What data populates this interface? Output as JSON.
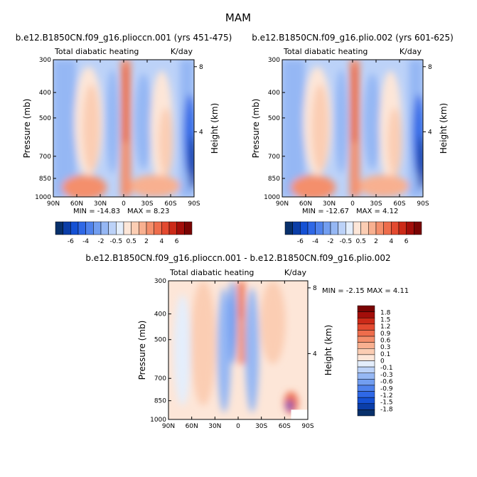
{
  "figure_title": "MAM",
  "palette": {
    "full": [
      "#08306b",
      "#0b3ea8",
      "#1551d4",
      "#2f68e6",
      "#4f82ec",
      "#729ef0",
      "#95b7f4",
      "#bcd2f8",
      "#e4eefc",
      "#fde6d8",
      "#fbcdb3",
      "#f8b090",
      "#f48f6c",
      "#ee6d4c",
      "#e34a30",
      "#cc2a18",
      "#a30e0a",
      "#7a0403"
    ],
    "diff": [
      "#08306b",
      "#0b3ea8",
      "#1551d4",
      "#2f68e6",
      "#4f82ec",
      "#729ef0",
      "#95b7f4",
      "#bcd2f8",
      "#e4eefc",
      "#fde6d8",
      "#fbcdb3",
      "#f8b090",
      "#f48f6c",
      "#ee6d4c",
      "#e34a30",
      "#cc2a18",
      "#a30e0a",
      "#7a0403"
    ]
  },
  "chart_data": [
    {
      "type": "heatmap",
      "title": "b.e12.B1850CN.f09_g16.plioccn.001 (yrs 451-475)",
      "subtitle_left": "Total diabatic heating",
      "subtitle_right": "K/day",
      "ylabel": "Pressure (mb)",
      "ylabel_right": "Height (km)",
      "x_ticks": [
        "90N",
        "60N",
        "30N",
        "0",
        "30S",
        "60S",
        "90S"
      ],
      "y_ticks": [
        "300",
        "400",
        "500",
        "700",
        "850",
        "1000"
      ],
      "y_ticks_right": [
        "8",
        "4"
      ],
      "min_label": "MIN = -14.83",
      "max_label": "MAX =   8.23",
      "colorbar_labels": [
        "-6",
        "-4",
        "-2",
        "-0.5",
        "0.5",
        "2",
        "4",
        "6"
      ]
    },
    {
      "type": "heatmap",
      "title": "b.e12.B1850CN.f09_g16.plio.002 (yrs 601-625)",
      "subtitle_left": "Total diabatic heating",
      "subtitle_right": "K/day",
      "ylabel": "Pressure (mb)",
      "ylabel_right": "Height (km)",
      "x_ticks": [
        "90N",
        "60N",
        "30N",
        "0",
        "30S",
        "60S",
        "90S"
      ],
      "y_ticks": [
        "300",
        "400",
        "500",
        "700",
        "850",
        "1000"
      ],
      "y_ticks_right": [
        "8",
        "4"
      ],
      "min_label": "MIN = -12.67",
      "max_label": "MAX =   4.12",
      "colorbar_labels": [
        "-6",
        "-4",
        "-2",
        "-0.5",
        "0.5",
        "2",
        "4",
        "6"
      ]
    },
    {
      "type": "heatmap",
      "title": "b.e12.B1850CN.f09_g16.plioccn.001 - b.e12.B1850CN.f09_g16.plio.002",
      "subtitle_left": "Total diabatic heating",
      "subtitle_right": "K/day",
      "ylabel": "Pressure (mb)",
      "ylabel_right": "Height (km)",
      "x_ticks": [
        "90N",
        "60N",
        "30N",
        "0",
        "30S",
        "60S",
        "90S"
      ],
      "y_ticks": [
        "300",
        "400",
        "500",
        "700",
        "850",
        "1000"
      ],
      "y_ticks_right": [
        "8",
        "4"
      ],
      "minmax_label": "MIN =   -2.15     MAX =   4.11",
      "colorbar_labels": [
        "1.8",
        "1.5",
        "1.2",
        "0.9",
        "0.6",
        "0.3",
        "0.1",
        "0",
        "-0.1",
        "-0.3",
        "-0.6",
        "-0.9",
        "-1.2",
        "-1.5",
        "-1.8"
      ]
    }
  ]
}
